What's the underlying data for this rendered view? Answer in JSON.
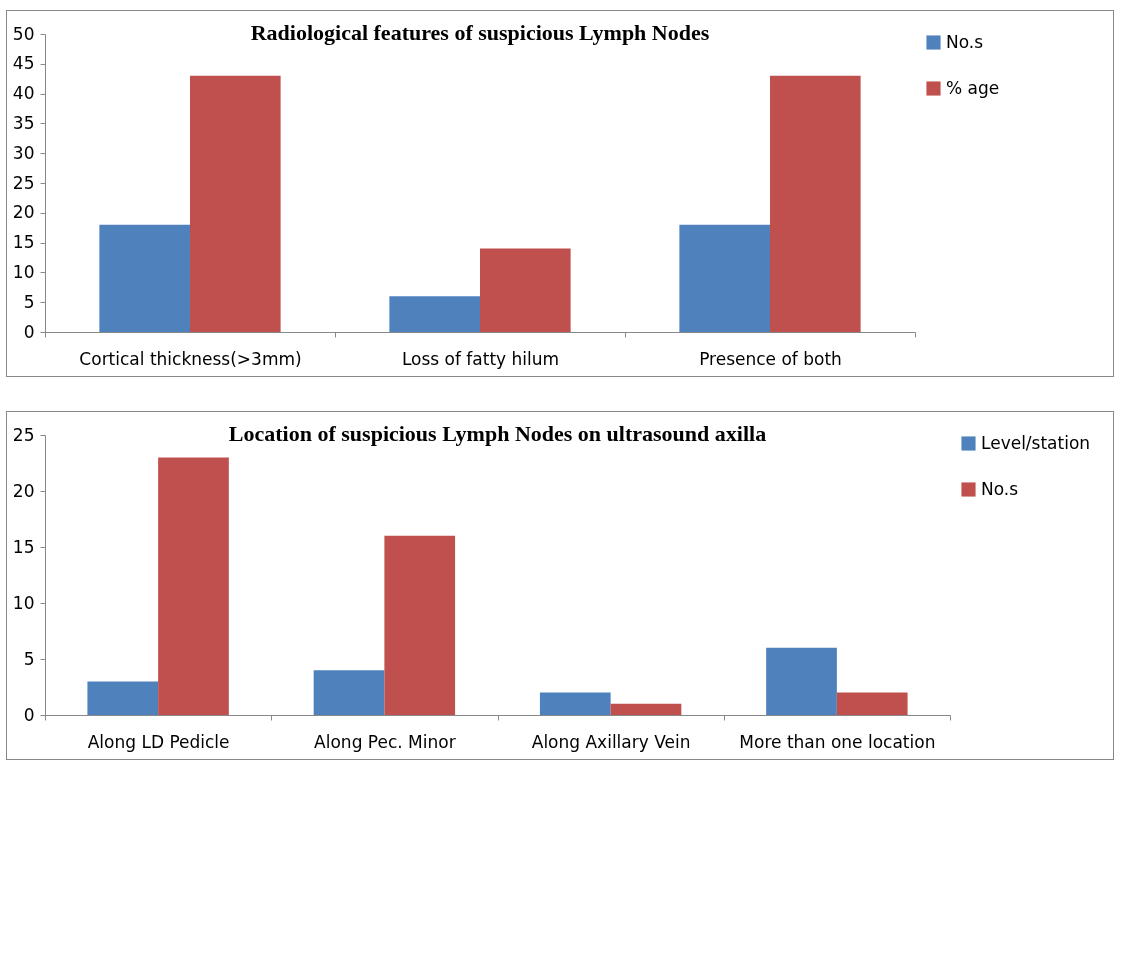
{
  "chart_data": [
    {
      "type": "bar",
      "title": "Radiological features of suspicious Lymph Nodes",
      "categories": [
        "Cortical thickness(>3mm)",
        "Loss of fatty hilum",
        "Presence of both"
      ],
      "series": [
        {
          "name": "No.s",
          "color": "#4f81bd",
          "values": [
            18,
            6,
            18
          ]
        },
        {
          "name": "% age",
          "color": "#c0504d",
          "values": [
            43,
            14,
            43
          ]
        }
      ],
      "ylim": [
        0,
        50
      ],
      "yticks": [
        0,
        5,
        10,
        15,
        20,
        25,
        30,
        35,
        40,
        45,
        50
      ],
      "grid": false,
      "legend": "right"
    },
    {
      "type": "bar",
      "title": "Location of suspicious Lymph Nodes on ultrasound axilla",
      "categories": [
        "Along LD Pedicle",
        "Along Pec. Minor",
        "Along Axillary Vein",
        "More than one location"
      ],
      "series": [
        {
          "name": "Level/station",
          "color": "#4f81bd",
          "values": [
            3,
            4,
            2,
            6
          ]
        },
        {
          "name": "No.s",
          "color": "#c0504d",
          "values": [
            23,
            16,
            1,
            2
          ]
        }
      ],
      "ylim": [
        0,
        25
      ],
      "yticks": [
        0,
        5,
        10,
        15,
        20,
        25
      ],
      "grid": false,
      "legend": "right"
    }
  ]
}
